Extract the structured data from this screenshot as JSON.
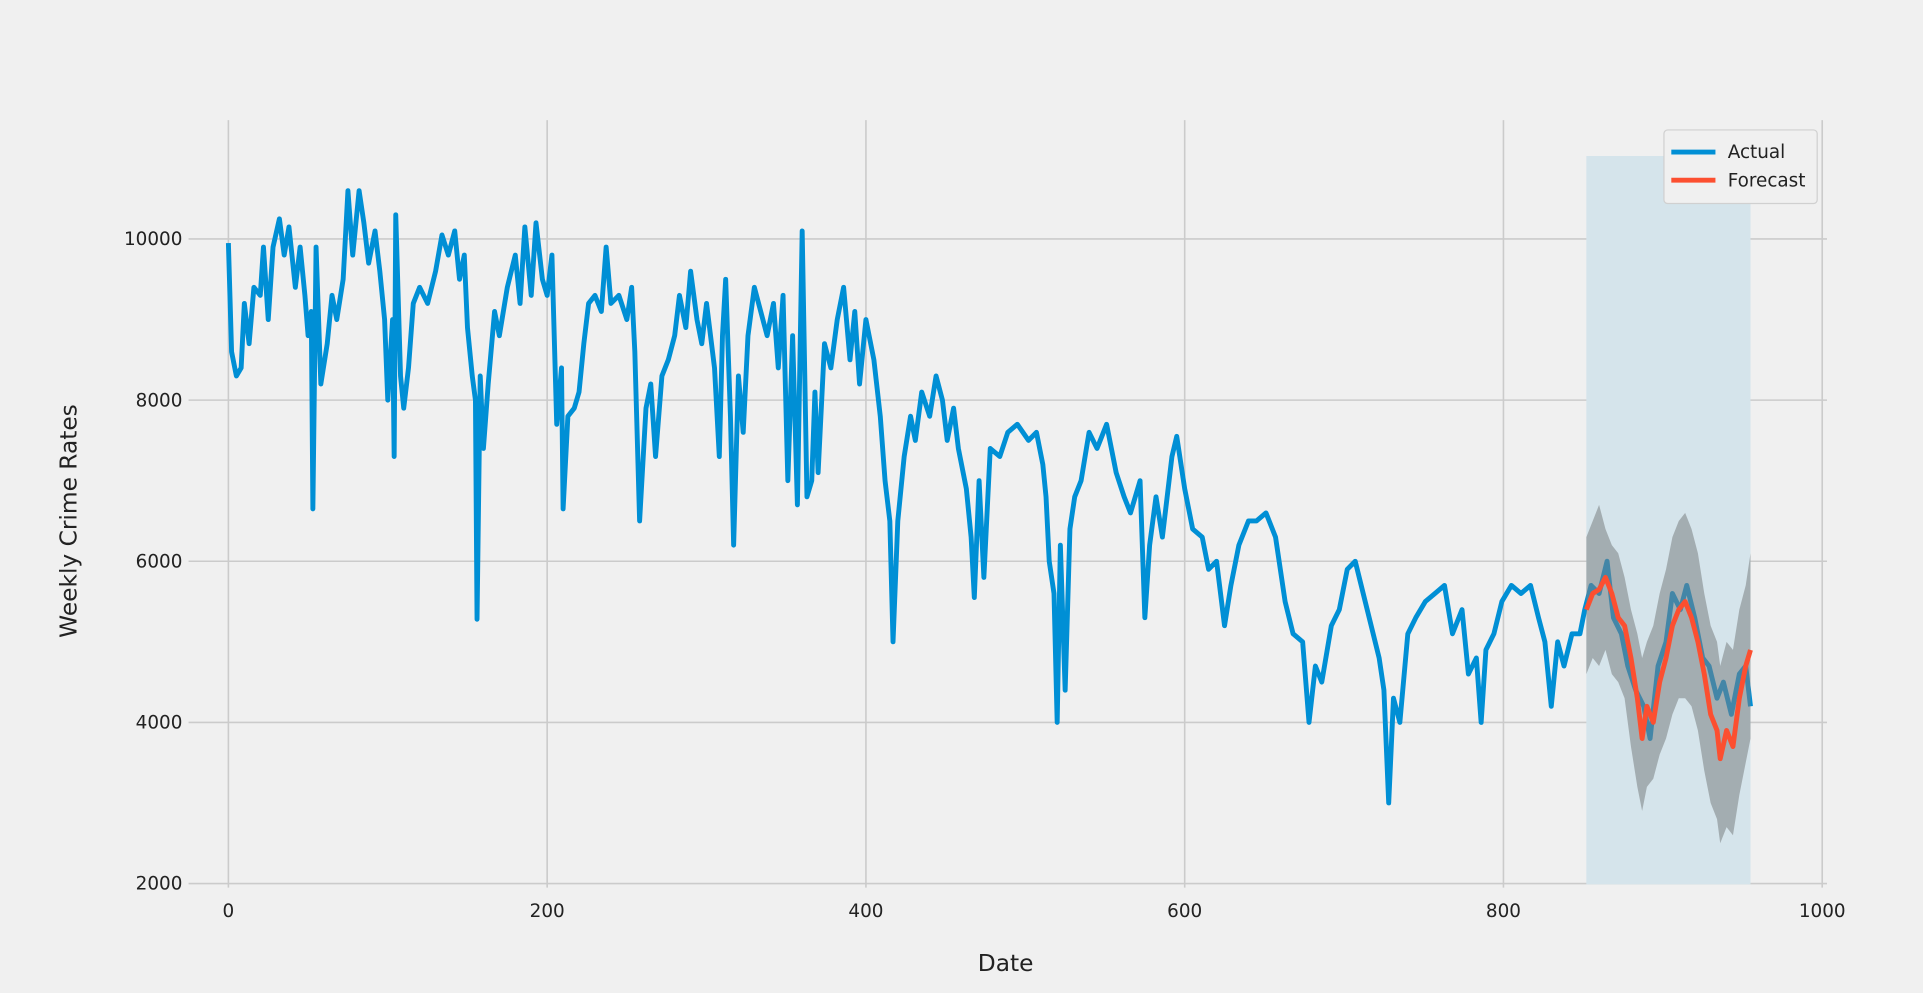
{
  "chart_data": {
    "type": "line",
    "x_label": "Date",
    "y_label": "Weekly Crime Rates",
    "xlim": [
      -25,
      1003
    ],
    "ylim": [
      1950,
      11475
    ],
    "xticks": [
      0,
      200,
      400,
      600,
      800,
      1000
    ],
    "yticks": [
      2000,
      4000,
      6000,
      8000,
      10000
    ],
    "grid": true,
    "legend": "upper right",
    "span": {
      "x": [
        852,
        955
      ],
      "y": [
        1990,
        11030
      ],
      "color": "#d5e4eb"
    },
    "series": [
      {
        "name": "Actual",
        "color": "#008fd5",
        "x": [
          0,
          2,
          5,
          8,
          10,
          13,
          16,
          20,
          22,
          25,
          28,
          32,
          35,
          38,
          42,
          45,
          48,
          50,
          52,
          53,
          55,
          58,
          62,
          65,
          68,
          72,
          75,
          78,
          82,
          85,
          88,
          92,
          95,
          98,
          100,
          103,
          104,
          105,
          108,
          110,
          113,
          116,
          120,
          125,
          130,
          134,
          138,
          142,
          145,
          148,
          150,
          153,
          155,
          156,
          158,
          160,
          163,
          167,
          170,
          175,
          180,
          183,
          186,
          190,
          193,
          197,
          200,
          203,
          206,
          209,
          210,
          213,
          217,
          220,
          223,
          226,
          230,
          234,
          237,
          240,
          245,
          250,
          253,
          255,
          258,
          262,
          265,
          268,
          272,
          276,
          280,
          283,
          287,
          290,
          294,
          297,
          300,
          305,
          308,
          310,
          312,
          315,
          317,
          320,
          323,
          326,
          330,
          334,
          338,
          342,
          345,
          348,
          351,
          354,
          357,
          360,
          363,
          366,
          368,
          370,
          374,
          378,
          382,
          386,
          390,
          393,
          396,
          400,
          405,
          409,
          412,
          415,
          417,
          420,
          424,
          428,
          431,
          435,
          440,
          444,
          448,
          451,
          455,
          458,
          463,
          466,
          468,
          471,
          474,
          478,
          484,
          489,
          495,
          502,
          507,
          511,
          513,
          515,
          518,
          520,
          522,
          525,
          528,
          531,
          535,
          540,
          545,
          551,
          557,
          562,
          566,
          572,
          575,
          578,
          582,
          586,
          592,
          595,
          600,
          605,
          611,
          615,
          620,
          625,
          629,
          634,
          640,
          645,
          651,
          657,
          663,
          668,
          674,
          678,
          682,
          686,
          692,
          697,
          702,
          707,
          712,
          717,
          722,
          725,
          728,
          731,
          735,
          740,
          745,
          751,
          757,
          763,
          768,
          774,
          778,
          783,
          786,
          789,
          794,
          799,
          805,
          811,
          817,
          822,
          826,
          830,
          834,
          838,
          843,
          848,
          851,
          855,
          860,
          865,
          869,
          874,
          878,
          883,
          888,
          892,
          897,
          902,
          906,
          911,
          915,
          920,
          925,
          929,
          934,
          938,
          943,
          948,
          952,
          955
        ],
        "values": [
          9950,
          8600,
          8300,
          8400,
          9200,
          8700,
          9400,
          9300,
          9900,
          9000,
          9900,
          10250,
          9800,
          10150,
          9400,
          9900,
          9300,
          8800,
          9100,
          6650,
          9900,
          8200,
          8700,
          9300,
          9000,
          9500,
          10600,
          9800,
          10600,
          10200,
          9700,
          10100,
          9600,
          9000,
          8000,
          9000,
          7300,
          10300,
          8300,
          7900,
          8400,
          9200,
          9400,
          9200,
          9600,
          10050,
          9800,
          10100,
          9500,
          9800,
          8900,
          8300,
          8000,
          5280,
          8300,
          7400,
          8200,
          9100,
          8800,
          9400,
          9800,
          9200,
          10150,
          9300,
          10200,
          9500,
          9300,
          9800,
          7700,
          8400,
          6650,
          7800,
          7900,
          8100,
          8700,
          9200,
          9300,
          9100,
          9900,
          9200,
          9300,
          9000,
          9400,
          8600,
          6500,
          7900,
          8200,
          7300,
          8300,
          8500,
          8800,
          9300,
          8900,
          9600,
          9000,
          8700,
          9200,
          8400,
          7300,
          8800,
          9500,
          7800,
          6200,
          8300,
          7600,
          8800,
          9400,
          9100,
          8800,
          9200,
          8400,
          9300,
          7000,
          8800,
          6700,
          10100,
          6800,
          7000,
          8100,
          7100,
          8700,
          8400,
          9000,
          9400,
          8500,
          9100,
          8200,
          9000,
          8500,
          7800,
          7000,
          6500,
          5000,
          6500,
          7300,
          7800,
          7500,
          8100,
          7800,
          8300,
          8000,
          7500,
          7900,
          7400,
          6900,
          6300,
          5550,
          7000,
          5800,
          7400,
          7300,
          7600,
          7700,
          7500,
          7600,
          7200,
          6800,
          6000,
          5600,
          4000,
          6200,
          4400,
          6400,
          6800,
          7000,
          7600,
          7400,
          7700,
          7100,
          6800,
          6600,
          7000,
          5300,
          6200,
          6800,
          6300,
          7300,
          7550,
          6900,
          6400,
          6300,
          5900,
          6000,
          5200,
          5700,
          6200,
          6500,
          6500,
          6600,
          6300,
          5500,
          5100,
          5000,
          4000,
          4700,
          4500,
          5200,
          5400,
          5900,
          6000,
          5600,
          5200,
          4800,
          4400,
          3000,
          4300,
          4000,
          5100,
          5300,
          5500,
          5600,
          5700,
          5100,
          5400,
          4600,
          4800,
          4000,
          4900,
          5100,
          5500,
          5700,
          5600,
          5700,
          5300,
          5000,
          4200,
          5000,
          4700,
          5100,
          5100,
          5400,
          5700,
          5600,
          6000,
          5300,
          5100,
          4700,
          4400,
          4200,
          3800,
          4700,
          5000,
          5600,
          5400,
          5700,
          5300,
          4800,
          4700,
          4300,
          4500,
          4100,
          4600,
          4700,
          4200
        ]
      },
      {
        "name": "Forecast",
        "color": "#fc4f30",
        "band_color": "#7a7f82",
        "x": [
          852,
          856,
          860,
          864,
          868,
          872,
          876,
          880,
          884,
          887,
          890,
          894,
          898,
          902,
          906,
          910,
          914,
          918,
          922,
          926,
          930,
          934,
          936,
          940,
          944,
          948,
          952,
          955
        ],
        "values": [
          5400,
          5600,
          5650,
          5800,
          5600,
          5300,
          5200,
          4800,
          4300,
          3800,
          4200,
          4000,
          4500,
          4800,
          5200,
          5400,
          5500,
          5300,
          5000,
          4600,
          4100,
          3900,
          3550,
          3900,
          3700,
          4300,
          4700,
          4900
        ],
        "lower": [
          4600,
          4800,
          4700,
          4900,
          4600,
          4500,
          4300,
          3700,
          3200,
          2900,
          3200,
          3300,
          3600,
          3800,
          4100,
          4300,
          4300,
          4200,
          3900,
          3400,
          3000,
          2800,
          2500,
          2700,
          2600,
          3100,
          3500,
          3800
        ],
        "upper": [
          6300,
          6500,
          6700,
          6400,
          6200,
          6100,
          5800,
          5400,
          5100,
          4800,
          5000,
          5200,
          5600,
          5900,
          6300,
          6500,
          6600,
          6400,
          6100,
          5600,
          5200,
          5000,
          4700,
          5000,
          4900,
          5400,
          5700,
          6100
        ]
      }
    ]
  }
}
